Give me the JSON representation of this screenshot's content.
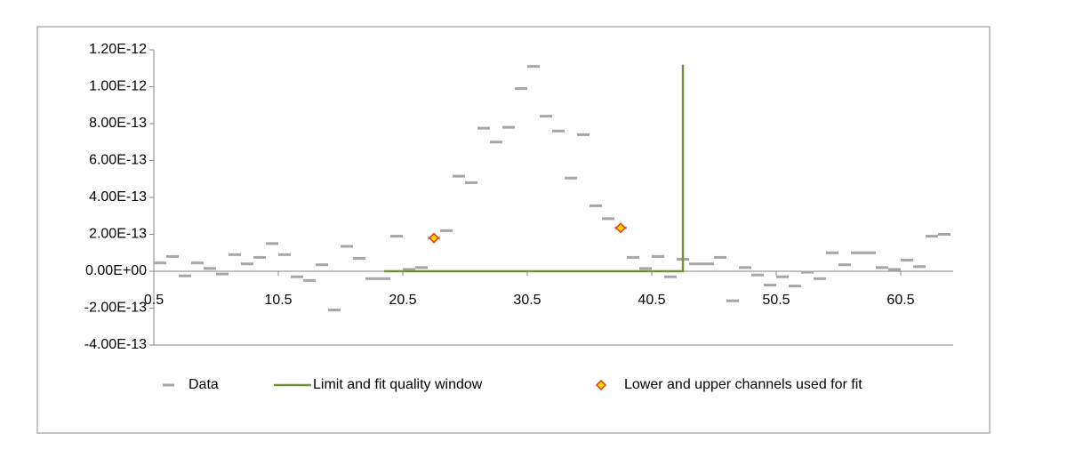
{
  "chart_data": {
    "type": "scatter",
    "xlim": [
      0.5,
      64.5
    ],
    "ylim": [
      -4e-13,
      1.2e-12
    ],
    "xticks": [
      0.5,
      10.5,
      20.5,
      30.5,
      40.5,
      50.5,
      60.5
    ],
    "yticks": [
      {
        "value": -4e-13,
        "label": "-4.00E-13"
      },
      {
        "value": -2e-13,
        "label": "-2.00E-13"
      },
      {
        "value": 0,
        "label": "0.00E+00"
      },
      {
        "value": 2e-13,
        "label": "2.00E-13"
      },
      {
        "value": 4e-13,
        "label": "4.00E-13"
      },
      {
        "value": 6e-13,
        "label": "6.00E-13"
      },
      {
        "value": 8e-13,
        "label": "8.00E-13"
      },
      {
        "value": 1e-12,
        "label": "1.00E-12"
      },
      {
        "value": 1.2e-12,
        "label": "1.20E-12"
      }
    ],
    "legend": "bottom",
    "series": [
      {
        "name": "Data",
        "color": "#a6a6a6",
        "marker": "dash",
        "x": [
          1,
          2,
          3,
          4,
          5,
          6,
          7,
          8,
          9,
          10,
          11,
          12,
          13,
          14,
          15,
          16,
          17,
          18,
          19,
          20,
          21,
          22,
          23,
          24,
          25,
          26,
          27,
          28,
          29,
          30,
          31,
          32,
          33,
          34,
          35,
          36,
          37,
          38,
          39,
          40,
          41,
          42,
          43,
          44,
          45,
          46,
          47,
          48,
          49,
          50,
          51,
          52,
          53,
          54,
          55,
          56,
          57,
          58,
          59,
          60,
          61,
          62,
          63,
          64
        ],
        "values": [
          4.5e-14,
          8e-14,
          -2.5e-14,
          4.5e-14,
          1.5e-14,
          -1.5e-14,
          9e-14,
          4e-14,
          7.5e-14,
          1.5e-13,
          9e-14,
          -3e-14,
          -5e-14,
          3.5e-14,
          -2.1e-13,
          1.35e-13,
          7e-14,
          -4e-14,
          -4e-14,
          1.9e-13,
          1e-14,
          2e-14,
          1.8e-13,
          2.2e-13,
          5.15e-13,
          4.8e-13,
          7.75e-13,
          7e-13,
          7.8e-13,
          9.9e-13,
          1.11e-12,
          8.4e-13,
          7.6e-13,
          5.05e-13,
          7.4e-13,
          3.55e-13,
          2.85e-13,
          2.35e-13,
          7.5e-14,
          1.5e-14,
          8e-14,
          -3e-14,
          6.5e-14,
          4e-14,
          4e-14,
          7.5e-14,
          -1.6e-13,
          2e-14,
          -2e-14,
          -7.5e-14,
          -3e-14,
          -8e-14,
          -5e-15,
          -4e-14,
          1e-13,
          3.5e-14,
          1e-13,
          1e-13,
          2e-14,
          1e-14,
          6e-14,
          2.5e-14,
          1.9e-13,
          2e-13
        ]
      },
      {
        "name": "Limit and fit quality window",
        "color": "#77933c",
        "marker": "line",
        "x": [
          19,
          43,
          43
        ],
        "values": [
          0,
          0,
          1.12e-12
        ]
      },
      {
        "name": "Lower and upper channels used for fit",
        "color": "#ffd700",
        "marker": "diamond",
        "x": [
          23,
          38
        ],
        "values": [
          1.8e-13,
          2.35e-13
        ]
      }
    ]
  }
}
